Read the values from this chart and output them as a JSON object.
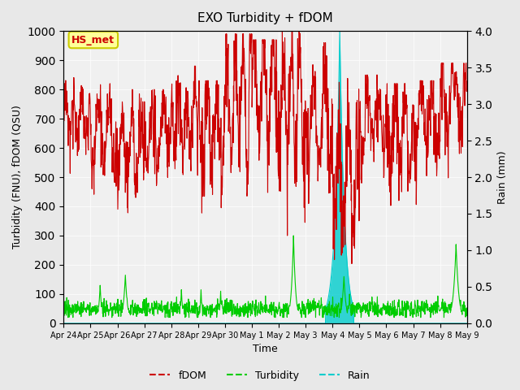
{
  "title": "EXO Turbidity + fDOM",
  "ylabel_left": "Turbidity (FNU), fDOM (QSU)",
  "ylabel_right": "Rain (mm)",
  "xlabel": "Time",
  "ylim_left": [
    0,
    1000
  ],
  "ylim_right": [
    0,
    4.0
  ],
  "yticks_left": [
    0,
    100,
    200,
    300,
    400,
    500,
    600,
    700,
    800,
    900,
    1000
  ],
  "yticks_right": [
    0.0,
    0.5,
    1.0,
    1.5,
    2.0,
    2.5,
    3.0,
    3.5,
    4.0
  ],
  "xtick_labels": [
    "Apr 24",
    "Apr 25",
    "Apr 26",
    "Apr 27",
    "Apr 28",
    "Apr 29",
    "Apr 30",
    "May 1",
    "May 2",
    "May 3",
    "May 4",
    "May 5",
    "May 6",
    "May 7",
    "May 8",
    "May 9"
  ],
  "fdom_color": "#cc0000",
  "turbidity_color": "#00cc00",
  "rain_color": "#00cccc",
  "bg_color": "#e8e8e8",
  "plot_bg_color": "#f0f0f0",
  "annotation_text": "HS_met",
  "annotation_bg": "#ffff99",
  "annotation_border": "#cccc00",
  "legend_labels": [
    "fDOM",
    "Turbidity",
    "Rain"
  ],
  "seed": 42
}
